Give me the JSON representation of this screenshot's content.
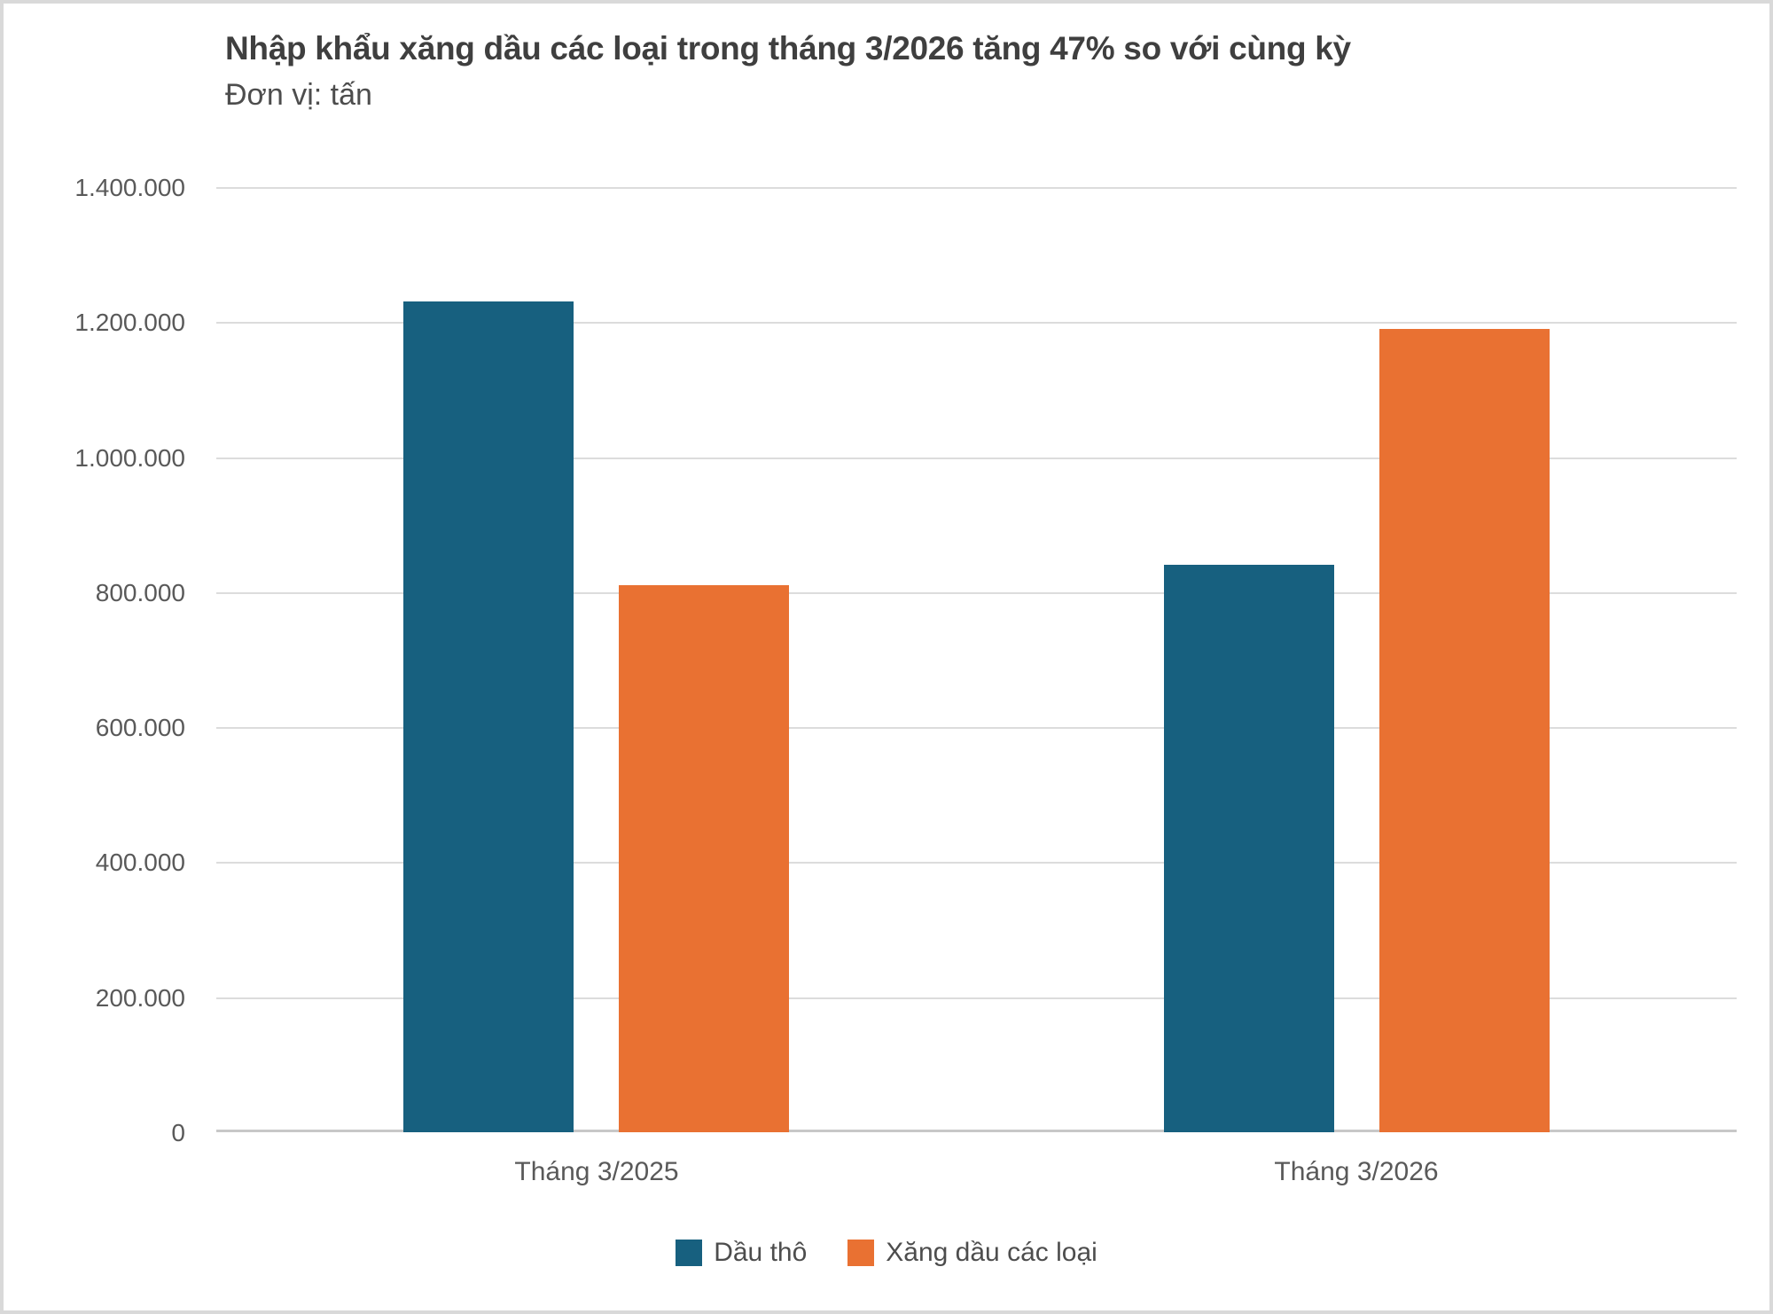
{
  "page": {
    "border_color": "#d9d9d9",
    "background": "#ffffff"
  },
  "chart_data": {
    "type": "bar",
    "title": "Nhập khẩu xăng dầu các loại trong tháng 3/2026 tăng 47% so với cùng kỳ",
    "subtitle": "Đơn vị: tấn",
    "categories": [
      "Tháng 3/2025",
      "Tháng 3/2026"
    ],
    "series": [
      {
        "name": "Dầu thô",
        "color": "#17607f",
        "values": [
          1230000,
          840000
        ]
      },
      {
        "name": "Xăng dầu các loại",
        "color": "#e97132",
        "values": [
          810000,
          1190000
        ]
      }
    ],
    "ylim": [
      0,
      1400000
    ],
    "ytick_step": 200000,
    "ytick_labels": [
      "0",
      "200.000",
      "400.000",
      "600.000",
      "800.000",
      "1.000.000",
      "1.200.000",
      "1.400.000"
    ],
    "grid": true,
    "legend_position": "bottom",
    "colors": {
      "title_text": "#3f3f3f",
      "axis_text": "#595959",
      "gridline": "#dcdcdc",
      "baseline": "#c8c8c8"
    }
  }
}
